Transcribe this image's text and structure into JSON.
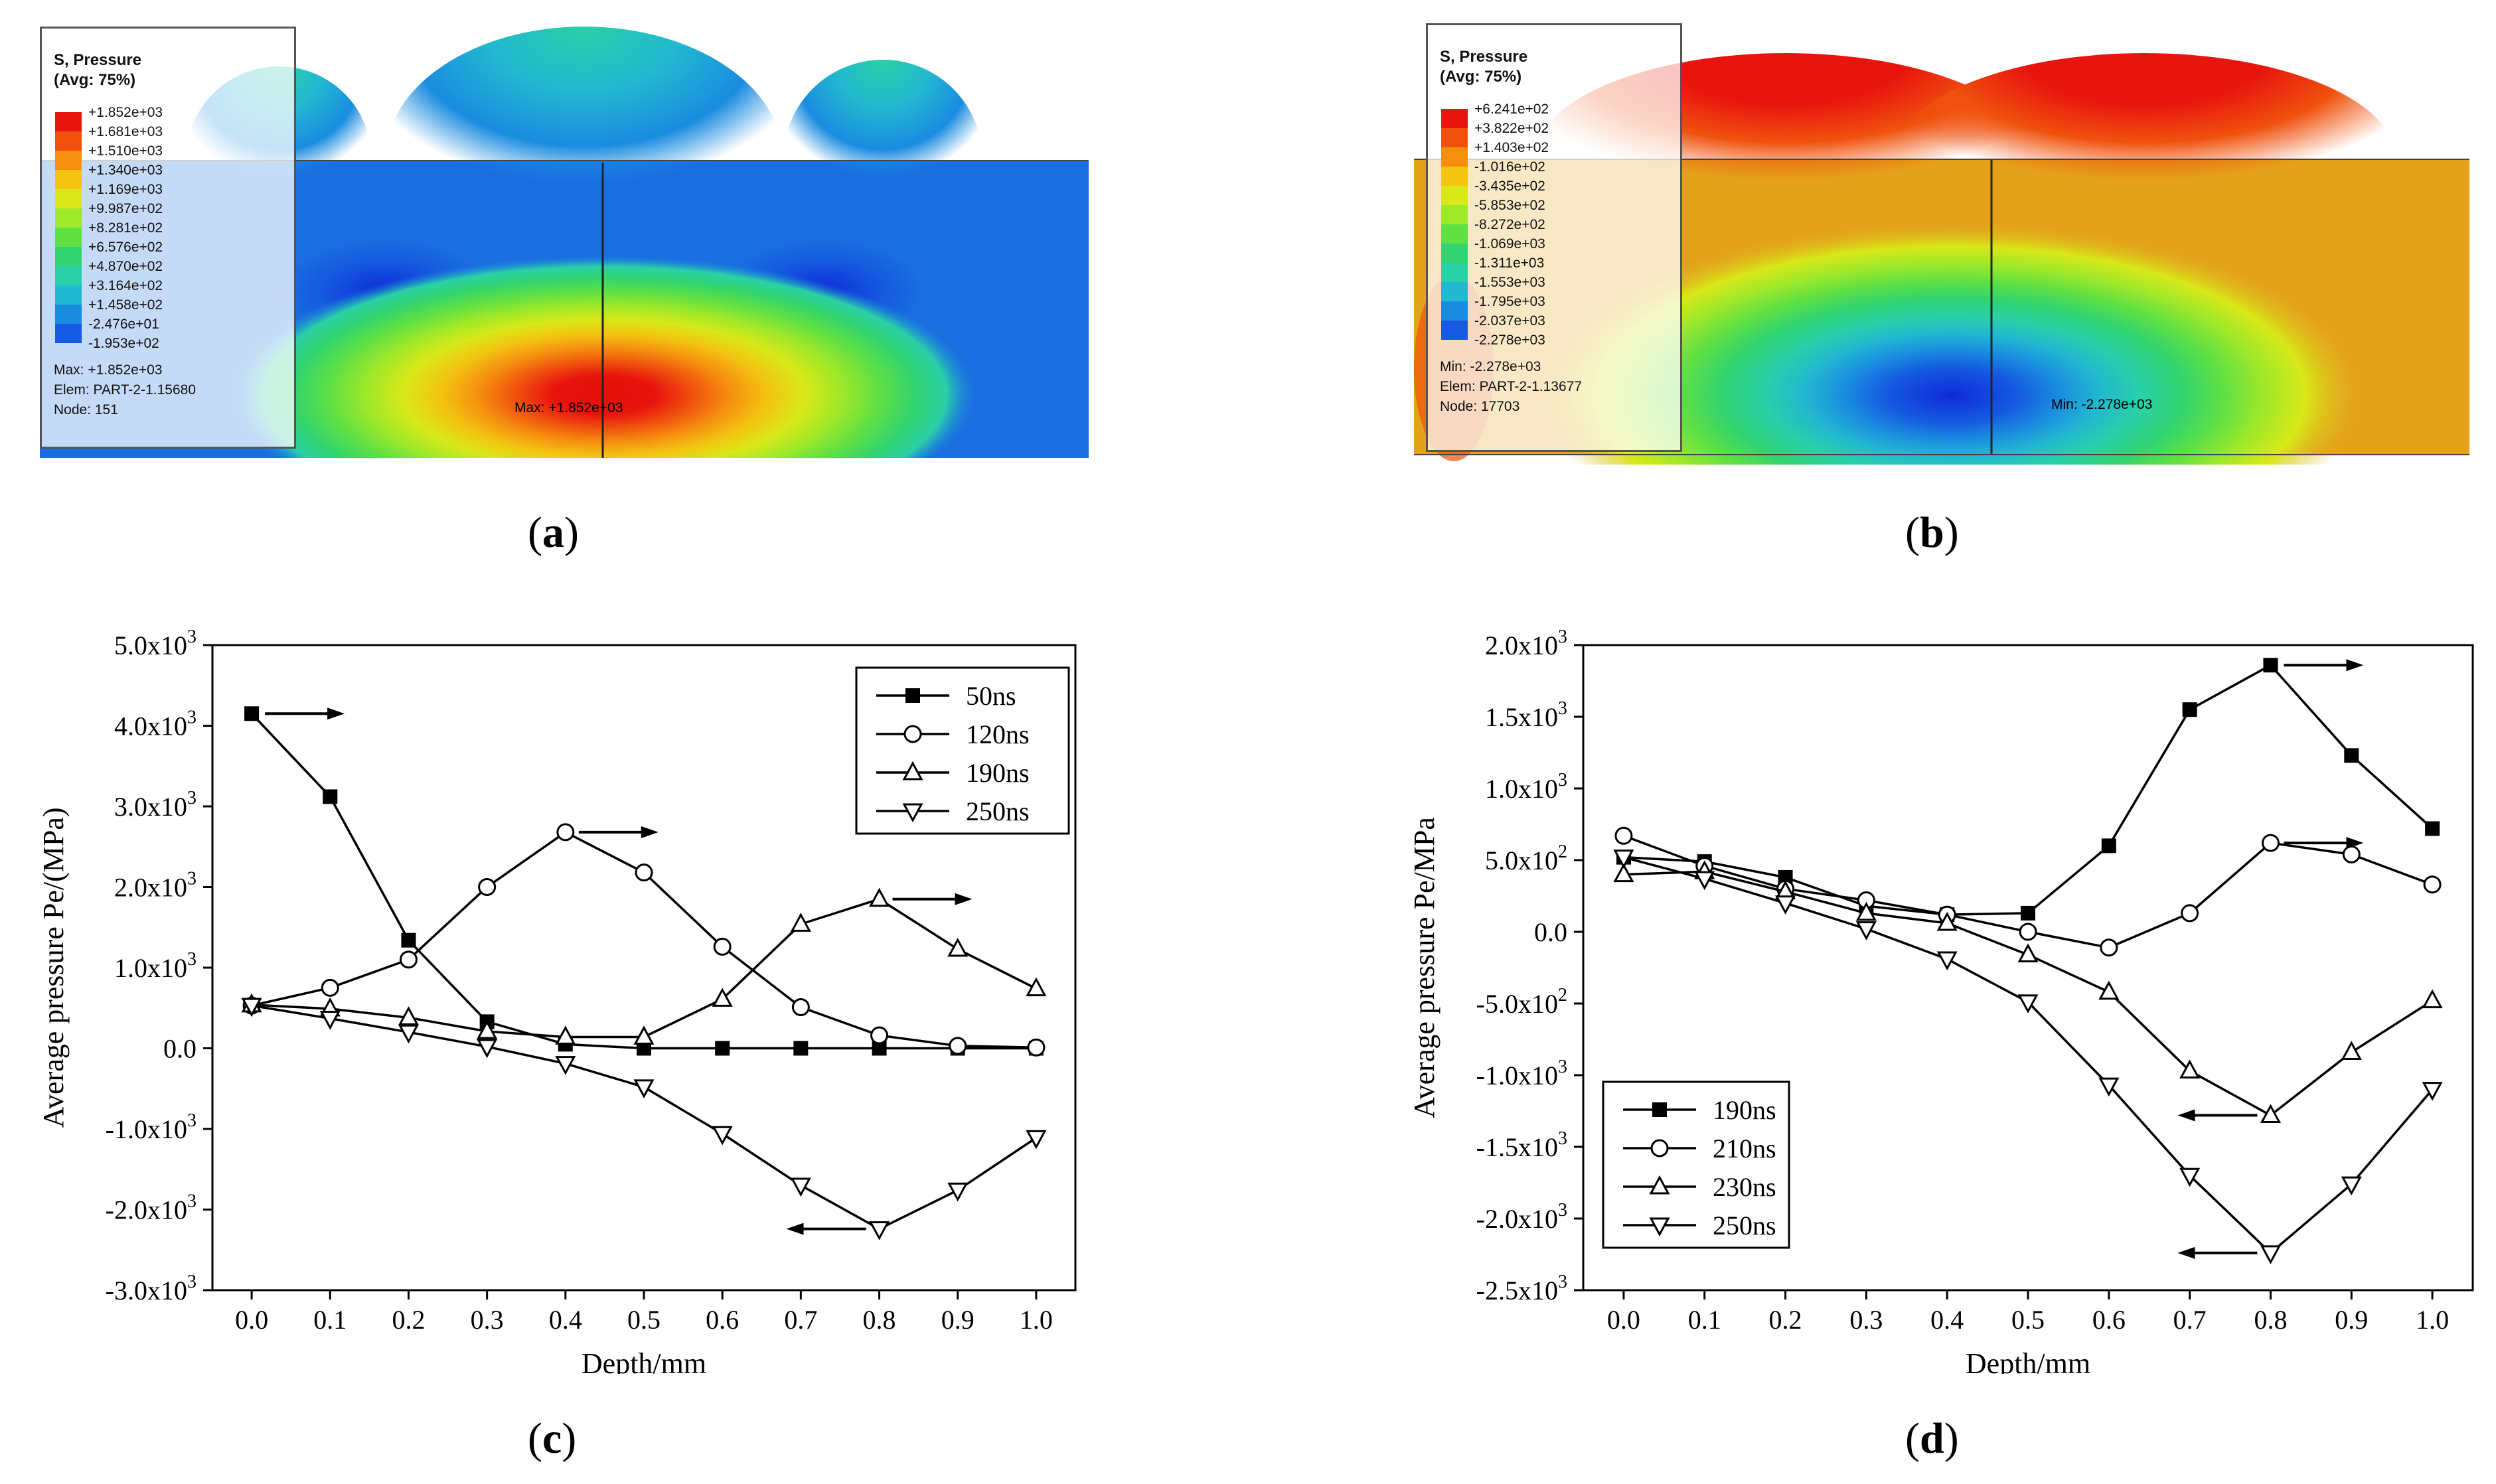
{
  "panels": {
    "a": {
      "label": "a"
    },
    "b": {
      "label": "b"
    },
    "c": {
      "label": "c"
    },
    "d": {
      "label": "d"
    }
  },
  "contour_a": {
    "title": "S, Pressure",
    "subtitle": "(Avg: 75%)",
    "scale": [
      "+1.852e+03",
      "+1.681e+03",
      "+1.510e+03",
      "+1.340e+03",
      "+1.169e+03",
      "+9.987e+02",
      "+8.281e+02",
      "+6.576e+02",
      "+4.870e+02",
      "+3.164e+02",
      "+1.458e+02",
      "-2.476e+01",
      "-1.953e+02"
    ],
    "colors": [
      "#e8140e",
      "#f0520e",
      "#f5900f",
      "#f3c412",
      "#d8e818",
      "#9fe82a",
      "#5fe043",
      "#31d470",
      "#2ad0a6",
      "#22b8d0",
      "#1a8ce0",
      "#155ae0",
      "#0f2ad8"
    ],
    "info": [
      "Max: +1.852e+03",
      "Elem: PART-2-1.15680",
      "Node: 151"
    ],
    "marker": "Max: +1.852e+03"
  },
  "contour_b": {
    "title": "S, Pressure",
    "subtitle": "(Avg: 75%)",
    "scale": [
      "+6.241e+02",
      "+3.822e+02",
      "+1.403e+02",
      "-1.016e+02",
      "-3.435e+02",
      "-5.853e+02",
      "-8.272e+02",
      "-1.069e+03",
      "-1.311e+03",
      "-1.553e+03",
      "-1.795e+03",
      "-2.037e+03",
      "-2.278e+03"
    ],
    "colors": [
      "#e8140e",
      "#f0520e",
      "#f5900f",
      "#f3c412",
      "#d8e818",
      "#9fe82a",
      "#5fe043",
      "#31d470",
      "#2ad0a6",
      "#22b8d0",
      "#1a8ce0",
      "#155ae0",
      "#0f2ad8"
    ],
    "info": [
      "Min: -2.278e+03",
      "Elem: PART-2-1.13677",
      "Node: 17703"
    ],
    "marker": "Min: -2.278e+03"
  },
  "chart_data": [
    {
      "type": "line",
      "panel": "c",
      "xlabel": "Depth/mm",
      "ylabel": "Average pressure Pe/(MPa)",
      "x": [
        0.0,
        0.1,
        0.2,
        0.3,
        0.4,
        0.5,
        0.6,
        0.7,
        0.8,
        0.9,
        1.0
      ],
      "xticks": [
        "0.0",
        "0.1",
        "0.2",
        "0.3",
        "0.4",
        "0.5",
        "0.6",
        "0.7",
        "0.8",
        "0.9",
        "1.0"
      ],
      "ylim": [
        -3000,
        5000
      ],
      "yticks": [
        {
          "v": 5000,
          "m": "5.0x10",
          "e": "3"
        },
        {
          "v": 4000,
          "m": "4.0x10",
          "e": "3"
        },
        {
          "v": 3000,
          "m": "3.0x10",
          "e": "3"
        },
        {
          "v": 2000,
          "m": "2.0x10",
          "e": "3"
        },
        {
          "v": 1000,
          "m": "1.0x10",
          "e": "3"
        },
        {
          "v": 0,
          "m": "0.0",
          "e": ""
        },
        {
          "v": -1000,
          "m": "-1.0x10",
          "e": "3"
        },
        {
          "v": -2000,
          "m": "-2.0x10",
          "e": "3"
        },
        {
          "v": -3000,
          "m": "-3.0x10",
          "e": "3"
        }
      ],
      "legend_position": "top-right",
      "series": [
        {
          "name": "50ns",
          "marker": "filled-square",
          "values": [
            4150,
            3120,
            1340,
            330,
            50,
            0,
            0,
            0,
            0,
            0,
            0
          ]
        },
        {
          "name": "120ns",
          "marker": "open-circle",
          "values": [
            530,
            750,
            1100,
            2000,
            2680,
            2180,
            1260,
            510,
            160,
            30,
            10
          ]
        },
        {
          "name": "190ns",
          "marker": "open-triangle-up",
          "values": [
            540,
            490,
            380,
            210,
            140,
            140,
            610,
            1540,
            1850,
            1230,
            740
          ]
        },
        {
          "name": "250ns",
          "marker": "open-triangle-down",
          "values": [
            530,
            370,
            200,
            20,
            -190,
            -480,
            -1060,
            -1700,
            -2240,
            -1760,
            -1110
          ]
        }
      ],
      "arrows": [
        {
          "x": 0.0,
          "y": 4150,
          "dir": "right"
        },
        {
          "x": 0.4,
          "y": 2680,
          "dir": "right"
        },
        {
          "x": 0.8,
          "y": 1850,
          "dir": "right"
        },
        {
          "x": 0.8,
          "y": -2240,
          "dir": "left"
        }
      ]
    },
    {
      "type": "line",
      "panel": "d",
      "xlabel": "Depth/mm",
      "ylabel": "Average pressure Pe/MPa",
      "x": [
        0.0,
        0.1,
        0.2,
        0.3,
        0.4,
        0.5,
        0.6,
        0.7,
        0.8,
        0.9,
        1.0
      ],
      "xticks": [
        "0.0",
        "0.1",
        "0.2",
        "0.3",
        "0.4",
        "0.5",
        "0.6",
        "0.7",
        "0.8",
        "0.9",
        "1.0"
      ],
      "ylim": [
        -2500,
        2000
      ],
      "yticks": [
        {
          "v": 2000,
          "m": "2.0x10",
          "e": "3"
        },
        {
          "v": 1500,
          "m": "1.5x10",
          "e": "3"
        },
        {
          "v": 1000,
          "m": "1.0x10",
          "e": "3"
        },
        {
          "v": 500,
          "m": "5.0x10",
          "e": "2"
        },
        {
          "v": 0,
          "m": "0.0",
          "e": ""
        },
        {
          "v": -500,
          "m": "-5.0x10",
          "e": "2"
        },
        {
          "v": -1000,
          "m": "-1.0x10",
          "e": "3"
        },
        {
          "v": -1500,
          "m": "-1.5x10",
          "e": "3"
        },
        {
          "v": -2000,
          "m": "-2.0x10",
          "e": "3"
        },
        {
          "v": -2500,
          "m": "-2.5x10",
          "e": "3"
        }
      ],
      "legend_position": "bottom-left",
      "series": [
        {
          "name": "190ns",
          "marker": "filled-square",
          "values": [
            520,
            490,
            380,
            180,
            120,
            130,
            600,
            1550,
            1860,
            1230,
            720
          ]
        },
        {
          "name": "210ns",
          "marker": "open-circle",
          "values": [
            670,
            460,
            300,
            220,
            120,
            0,
            -110,
            130,
            620,
            540,
            330
          ]
        },
        {
          "name": "230ns",
          "marker": "open-triangle-up",
          "values": [
            400,
            420,
            280,
            130,
            60,
            -160,
            -420,
            -970,
            -1280,
            -840,
            -480
          ]
        },
        {
          "name": "250ns",
          "marker": "open-triangle-down",
          "values": [
            520,
            370,
            200,
            20,
            -190,
            -490,
            -1070,
            -1700,
            -2240,
            -1760,
            -1100
          ]
        }
      ],
      "arrows": [
        {
          "x": 0.8,
          "y": 1860,
          "dir": "right"
        },
        {
          "x": 0.8,
          "y": 620,
          "dir": "right"
        },
        {
          "x": 0.8,
          "y": -1280,
          "dir": "left"
        },
        {
          "x": 0.8,
          "y": -2240,
          "dir": "left"
        }
      ]
    }
  ]
}
